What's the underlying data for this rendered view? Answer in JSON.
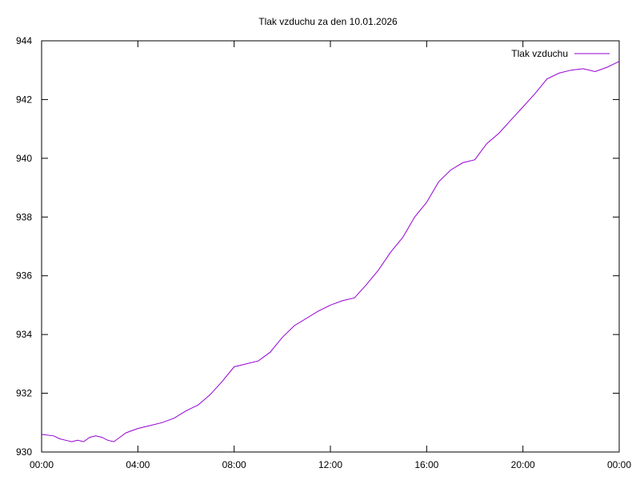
{
  "chart_data": {
    "type": "line",
    "title": "Tlak vzduchu za den 10.01.2026",
    "xlabel": "",
    "ylabel": "",
    "x_unit": "hours since 00:00",
    "xlim": [
      0,
      24
    ],
    "ylim": [
      930,
      944
    ],
    "x_ticks": [
      {
        "value": 0,
        "label": "00:00"
      },
      {
        "value": 4,
        "label": "04:00"
      },
      {
        "value": 8,
        "label": "08:00"
      },
      {
        "value": 12,
        "label": "12:00"
      },
      {
        "value": 16,
        "label": "16:00"
      },
      {
        "value": 20,
        "label": "20:00"
      },
      {
        "value": 24,
        "label": "00:00"
      }
    ],
    "y_ticks": [
      {
        "value": 930,
        "label": "930"
      },
      {
        "value": 932,
        "label": "932"
      },
      {
        "value": 934,
        "label": "934"
      },
      {
        "value": 936,
        "label": "936"
      },
      {
        "value": 938,
        "label": "938"
      },
      {
        "value": 940,
        "label": "940"
      },
      {
        "value": 942,
        "label": "942"
      },
      {
        "value": 944,
        "label": "944"
      }
    ],
    "grid": false,
    "legend": "top-right",
    "series": [
      {
        "name": "Tlak vzduchu",
        "color": "#9400d3",
        "points": [
          [
            0.0,
            930.6
          ],
          [
            0.5,
            930.55
          ],
          [
            0.75,
            930.45
          ],
          [
            1.0,
            930.4
          ],
          [
            1.25,
            930.35
          ],
          [
            1.5,
            930.4
          ],
          [
            1.75,
            930.35
          ],
          [
            2.0,
            930.5
          ],
          [
            2.25,
            930.55
          ],
          [
            2.5,
            930.5
          ],
          [
            2.75,
            930.4
          ],
          [
            3.0,
            930.35
          ],
          [
            3.25,
            930.5
          ],
          [
            3.5,
            930.65
          ],
          [
            4.0,
            930.8
          ],
          [
            4.5,
            930.9
          ],
          [
            5.0,
            931.0
          ],
          [
            5.5,
            931.15
          ],
          [
            6.0,
            931.4
          ],
          [
            6.5,
            931.6
          ],
          [
            7.0,
            931.95
          ],
          [
            7.5,
            932.4
          ],
          [
            8.0,
            932.9
          ],
          [
            8.5,
            933.0
          ],
          [
            9.0,
            933.1
          ],
          [
            9.5,
            933.4
          ],
          [
            10.0,
            933.9
          ],
          [
            10.5,
            934.3
          ],
          [
            11.0,
            934.55
          ],
          [
            11.5,
            934.8
          ],
          [
            12.0,
            935.0
          ],
          [
            12.5,
            935.15
          ],
          [
            13.0,
            935.25
          ],
          [
            13.5,
            935.7
          ],
          [
            14.0,
            936.2
          ],
          [
            14.5,
            936.8
          ],
          [
            15.0,
            937.3
          ],
          [
            15.5,
            938.0
          ],
          [
            16.0,
            938.5
          ],
          [
            16.5,
            939.2
          ],
          [
            17.0,
            939.6
          ],
          [
            17.5,
            939.85
          ],
          [
            18.0,
            939.95
          ],
          [
            18.5,
            940.5
          ],
          [
            19.0,
            940.85
          ],
          [
            19.5,
            941.3
          ],
          [
            20.0,
            941.75
          ],
          [
            20.5,
            942.2
          ],
          [
            21.0,
            942.7
          ],
          [
            21.5,
            942.9
          ],
          [
            22.0,
            943.0
          ],
          [
            22.5,
            943.05
          ],
          [
            23.0,
            942.95
          ],
          [
            23.5,
            943.1
          ],
          [
            24.0,
            943.3
          ]
        ]
      }
    ]
  }
}
